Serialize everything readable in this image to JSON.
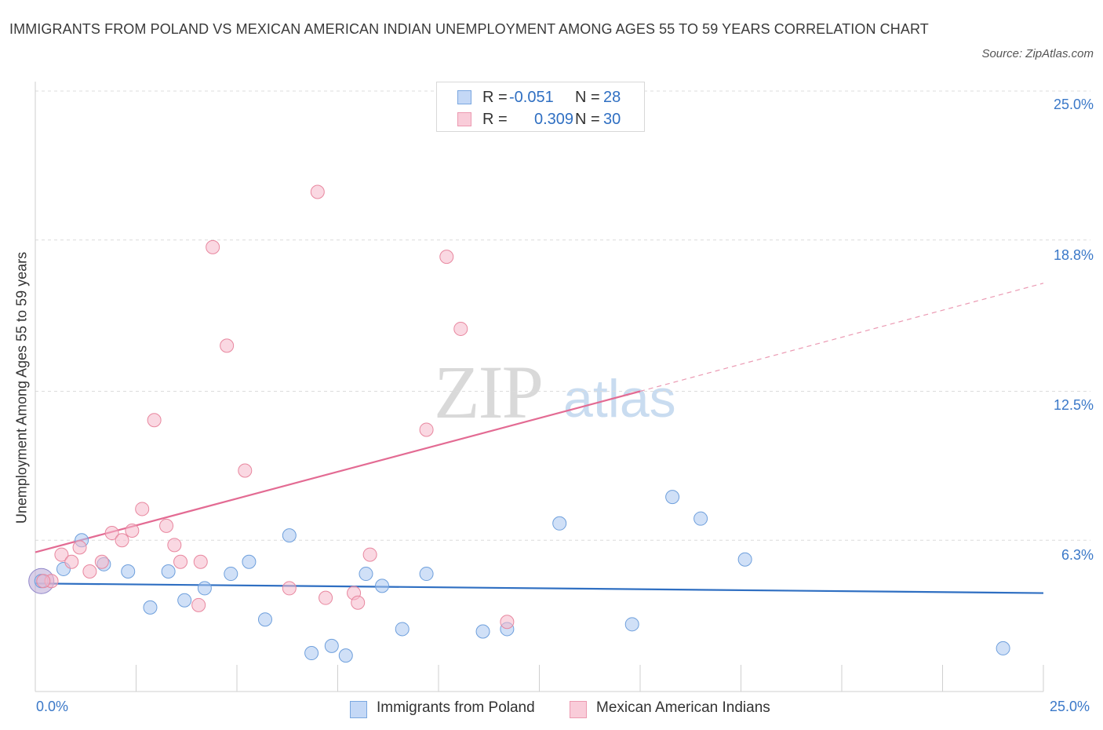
{
  "header": {
    "title": "IMMIGRANTS FROM POLAND VS MEXICAN AMERICAN INDIAN UNEMPLOYMENT AMONG AGES 55 TO 59 YEARS CORRELATION CHART",
    "source": "Source: ZipAtlas.com"
  },
  "watermark": {
    "zip": "ZIP",
    "atlas": "atlas"
  },
  "stats": {
    "r_label": "R =",
    "n_label": "N =",
    "rows": [
      {
        "r": "-0.051",
        "n": "28",
        "color": "#a9c6f0"
      },
      {
        "r": "0.309",
        "n": "30",
        "color": "#f5b8cb"
      }
    ]
  },
  "legend": [
    {
      "name": "Immigrants from Poland",
      "color": "#a9c6f0"
    },
    {
      "name": "Mexican American Indians",
      "color": "#f5b8cb"
    }
  ],
  "chart_data": {
    "type": "scatter",
    "title": "IMMIGRANTS FROM POLAND VS MEXICAN AMERICAN INDIAN UNEMPLOYMENT AMONG AGES 55 TO 59 YEARS CORRELATION CHART",
    "xlabel": "",
    "ylabel": "Unemployment Among Ages 55 to 59 years",
    "xlim": [
      0,
      25
    ],
    "ylim": [
      0,
      25
    ],
    "x_tick_labels": [
      "0.0%",
      "25.0%"
    ],
    "y_ticks": [
      6.3,
      12.5,
      18.8,
      25.0
    ],
    "y_tick_labels": [
      "6.3%",
      "12.5%",
      "18.8%",
      "25.0%"
    ],
    "grid": true,
    "legend_position": "bottom",
    "series": [
      {
        "name": "Immigrants from Poland",
        "color": "#a9c6f0",
        "edge": "#6e9fdc",
        "line_color": "#2f6fc2",
        "R": -0.051,
        "N": 28,
        "trend": [
          [
            0,
            4.5
          ],
          [
            25,
            4.1
          ]
        ],
        "points": [
          [
            0.15,
            4.6
          ],
          [
            0.7,
            5.1
          ],
          [
            1.15,
            6.3
          ],
          [
            1.7,
            5.3
          ],
          [
            2.3,
            5.0
          ],
          [
            2.85,
            3.5
          ],
          [
            3.3,
            5.0
          ],
          [
            3.7,
            3.8
          ],
          [
            4.2,
            4.3
          ],
          [
            4.85,
            4.9
          ],
          [
            5.3,
            5.4
          ],
          [
            5.7,
            3.0
          ],
          [
            6.3,
            6.5
          ],
          [
            6.85,
            1.6
          ],
          [
            7.35,
            1.9
          ],
          [
            7.7,
            1.5
          ],
          [
            8.2,
            4.9
          ],
          [
            8.6,
            4.4
          ],
          [
            9.1,
            2.6
          ],
          [
            9.7,
            4.9
          ],
          [
            11.1,
            2.5
          ],
          [
            11.7,
            2.6
          ],
          [
            13.0,
            7.0
          ],
          [
            14.8,
            2.8
          ],
          [
            15.8,
            8.1
          ],
          [
            16.5,
            7.2
          ],
          [
            17.6,
            5.5
          ],
          [
            24.0,
            1.8
          ]
        ],
        "big_point": [
          0.15,
          4.6
        ]
      },
      {
        "name": "Mexican American Indians",
        "color": "#f5b8cb",
        "edge": "#e8879f",
        "line_color": "#e36b93",
        "R": 0.309,
        "N": 30,
        "trend_solid": [
          [
            0,
            5.8
          ],
          [
            15.0,
            12.5
          ]
        ],
        "trend_dashed": [
          [
            15.0,
            12.5
          ],
          [
            25,
            17.0
          ]
        ],
        "points": [
          [
            0.4,
            4.6
          ],
          [
            0.65,
            5.7
          ],
          [
            0.9,
            5.4
          ],
          [
            1.1,
            6.0
          ],
          [
            1.35,
            5.0
          ],
          [
            1.65,
            5.4
          ],
          [
            1.9,
            6.6
          ],
          [
            2.15,
            6.3
          ],
          [
            2.4,
            6.7
          ],
          [
            2.65,
            7.6
          ],
          [
            2.95,
            11.3
          ],
          [
            3.25,
            6.9
          ],
          [
            3.45,
            6.1
          ],
          [
            3.6,
            5.4
          ],
          [
            4.05,
            3.6
          ],
          [
            4.1,
            5.4
          ],
          [
            4.4,
            18.5
          ],
          [
            4.75,
            14.4
          ],
          [
            5.2,
            9.2
          ],
          [
            6.3,
            4.3
          ],
          [
            7.0,
            20.8
          ],
          [
            7.2,
            3.9
          ],
          [
            7.9,
            4.1
          ],
          [
            8.0,
            3.7
          ],
          [
            8.3,
            5.7
          ],
          [
            9.7,
            10.9
          ],
          [
            10.2,
            18.1
          ],
          [
            10.55,
            15.1
          ],
          [
            11.7,
            2.9
          ],
          [
            0.2,
            4.6
          ]
        ]
      }
    ]
  }
}
